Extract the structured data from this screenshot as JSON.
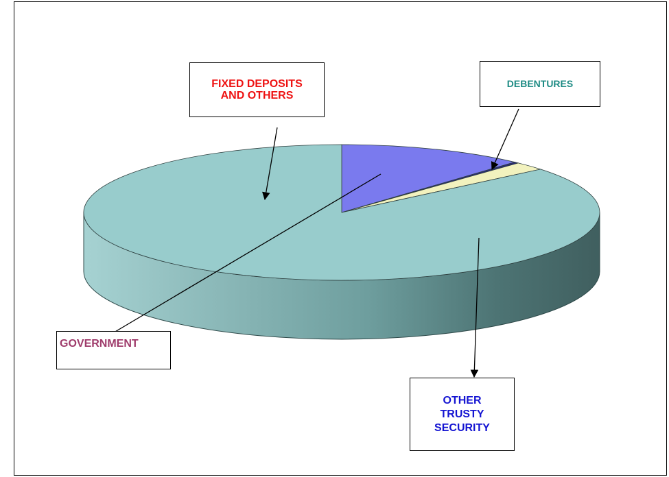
{
  "chart_data": {
    "type": "pie",
    "style": "3d",
    "slices": [
      {
        "label": "OTHER TRUSTY SECURITY",
        "value": 86,
        "color": "#98cccc",
        "label_color": "#1414d2"
      },
      {
        "label": "FIXED DEPOSITS AND OTHERS",
        "value": 0.3,
        "color": "#2a2a7a",
        "label_color": "#ee1212"
      },
      {
        "label": "DEBENTURES",
        "value": 2,
        "color": "#f2f2be",
        "label_color": "#1e8b84"
      },
      {
        "label": "GOVERNMENT",
        "value": 11.7,
        "color": "#7a7aee",
        "label_color": "#9e3a6a"
      }
    ],
    "legend": "callouts"
  },
  "labels": {
    "fixed_line1": "FIXED DEPOSITS",
    "fixed_line2": "AND OTHERS",
    "debentures": "DEBENTURES",
    "government": "GOVERNMENT",
    "trusty_line1": "OTHER",
    "trusty_line2": "TRUSTY",
    "trusty_line3": "SECURITY"
  }
}
